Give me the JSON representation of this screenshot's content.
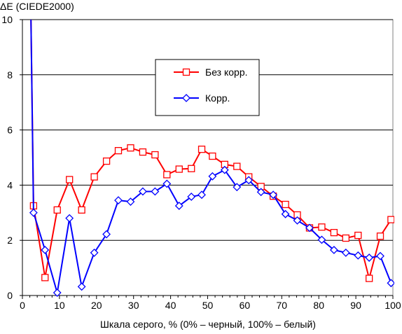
{
  "chart_data": {
    "type": "line",
    "title": "",
    "ylabel": "ΔE (CIEDE2000)",
    "xlabel": "Шкала серого, % (0% – черный, 100% – белый)",
    "xlim": [
      0,
      100
    ],
    "ylim": [
      0,
      10
    ],
    "xticks": [
      "0",
      "10",
      "20",
      "30",
      "40",
      "50",
      "60",
      "70",
      "80",
      "90",
      "100"
    ],
    "yticks": [
      "0",
      "2",
      "4",
      "6",
      "8",
      "10"
    ],
    "grid": "horizontal",
    "legend_position": "upper-center",
    "series": [
      {
        "name": "Без корр.",
        "color": "#ff0000",
        "marker": "square",
        "x": [
          2.3,
          3.0,
          6.1,
          9.4,
          12.7,
          16.0,
          19.4,
          22.7,
          25.9,
          29.2,
          32.5,
          35.8,
          39.0,
          42.3,
          45.6,
          48.4,
          51.3,
          54.6,
          57.9,
          61.1,
          64.4,
          67.7,
          71.0,
          74.2,
          77.5,
          80.8,
          84.1,
          87.3,
          90.6,
          93.6,
          96.6,
          99.5
        ],
        "y": [
          10.0,
          3.25,
          0.65,
          3.1,
          4.2,
          3.1,
          4.3,
          4.87,
          5.25,
          5.35,
          5.2,
          5.1,
          4.38,
          4.58,
          4.6,
          5.3,
          5.05,
          4.75,
          4.68,
          4.3,
          3.95,
          3.6,
          3.3,
          2.92,
          2.45,
          2.48,
          2.28,
          2.08,
          2.18,
          0.62,
          2.15,
          2.75
        ]
      },
      {
        "name": "Корр.",
        "color": "#0000ff",
        "marker": "diamond",
        "x": [
          2.3,
          3.0,
          6.1,
          9.4,
          12.7,
          16.0,
          19.4,
          22.7,
          25.9,
          29.2,
          32.5,
          35.8,
          39.0,
          42.3,
          45.6,
          48.4,
          51.3,
          54.6,
          57.9,
          61.1,
          64.4,
          67.7,
          71.0,
          74.2,
          77.5,
          80.8,
          84.1,
          87.3,
          90.6,
          93.6,
          96.6,
          99.5
        ],
        "y": [
          10.0,
          3.0,
          1.65,
          0.1,
          2.8,
          0.32,
          1.55,
          2.22,
          3.45,
          3.4,
          3.77,
          3.77,
          4.05,
          3.25,
          3.58,
          3.65,
          4.32,
          4.55,
          3.93,
          4.18,
          3.75,
          3.65,
          2.95,
          2.72,
          2.45,
          2.02,
          1.65,
          1.55,
          1.45,
          1.37,
          1.43,
          0.45
        ]
      }
    ]
  }
}
